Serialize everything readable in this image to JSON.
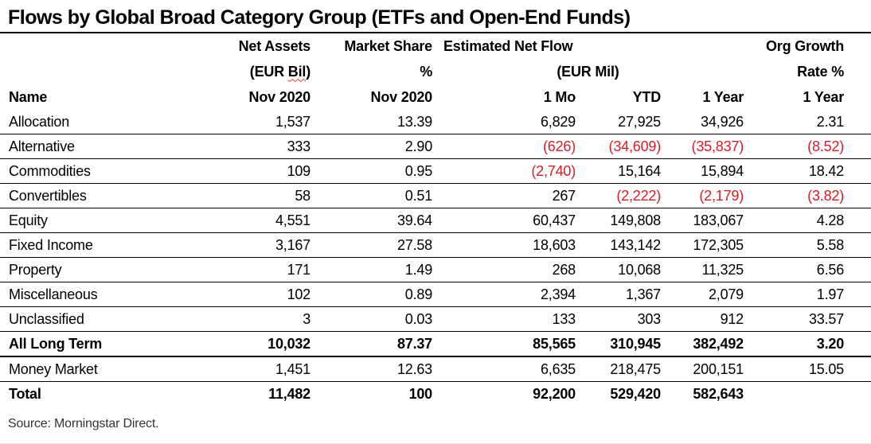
{
  "title": "Flows by Global Broad Category Group (ETFs and Open-End Funds)",
  "source_note": "Source: Morningstar Direct.",
  "colors": {
    "negative_red": "#d22027",
    "spellcheck_squiggle": "#e03a3a",
    "text": "#000000",
    "background": "#ffffff"
  },
  "table": {
    "columns": {
      "name": {
        "label": "Name"
      },
      "net_assets": {
        "line1": "Net Assets",
        "line2_prefix": "(EUR ",
        "line2_word": "Bil",
        "line2_suffix": ")",
        "line3": "Nov 2020"
      },
      "market_share": {
        "line1": "Market Share",
        "line2": "%",
        "line3": "Nov 2020"
      },
      "est_net_flow": {
        "line1": "Estimated Net Flow",
        "line2": "(EUR Mil)",
        "subcols": [
          "1 Mo",
          "YTD",
          "1 Year"
        ]
      },
      "org_growth": {
        "line1": "Org Growth",
        "line2": "Rate %",
        "line3": "1 Year"
      }
    },
    "rows": [
      {
        "name": "Allocation",
        "values": [
          "1,537",
          "13.39",
          "6,829",
          "27,925",
          "34,926",
          "2.31"
        ],
        "row_class": ""
      },
      {
        "name": "Alternative",
        "values": [
          "333",
          "2.90",
          "(626)",
          "(34,609)",
          "(35,837)",
          "(8.52)"
        ],
        "row_class": ""
      },
      {
        "name": "Commodities",
        "values": [
          "109",
          "0.95",
          "(2,740)",
          "15,164",
          "15,894",
          "18.42"
        ],
        "row_class": ""
      },
      {
        "name": "Convertibles",
        "values": [
          "58",
          "0.51",
          "267",
          "(2,222)",
          "(2,179)",
          "(3.82)"
        ],
        "row_class": ""
      },
      {
        "name": "Equity",
        "values": [
          "4,551",
          "39.64",
          "60,437",
          "149,808",
          "183,067",
          "4.28"
        ],
        "row_class": ""
      },
      {
        "name": "Fixed Income",
        "values": [
          "3,167",
          "27.58",
          "18,603",
          "143,142",
          "172,305",
          "5.58"
        ],
        "row_class": ""
      },
      {
        "name": "Property",
        "values": [
          "171",
          "1.49",
          "268",
          "10,068",
          "11,325",
          "6.56"
        ],
        "row_class": ""
      },
      {
        "name": "Miscellaneous",
        "values": [
          "102",
          "0.89",
          "2,394",
          "1,367",
          "2,079",
          "1.97"
        ],
        "row_class": ""
      },
      {
        "name": "Unclassified",
        "values": [
          "3",
          "0.03",
          "133",
          "303",
          "912",
          "33.57"
        ],
        "row_class": ""
      },
      {
        "name": "All Long Term",
        "values": [
          "10,032",
          "87.37",
          "85,565",
          "310,945",
          "382,492",
          "3.20"
        ],
        "row_class": "subtotal"
      },
      {
        "name": "Money Market",
        "values": [
          "1,451",
          "12.63",
          "6,635",
          "218,475",
          "200,151",
          "15.05"
        ],
        "row_class": ""
      },
      {
        "name": "Total",
        "values": [
          "11,482",
          "100",
          "92,200",
          "529,420",
          "582,643",
          ""
        ],
        "row_class": "total"
      }
    ]
  }
}
